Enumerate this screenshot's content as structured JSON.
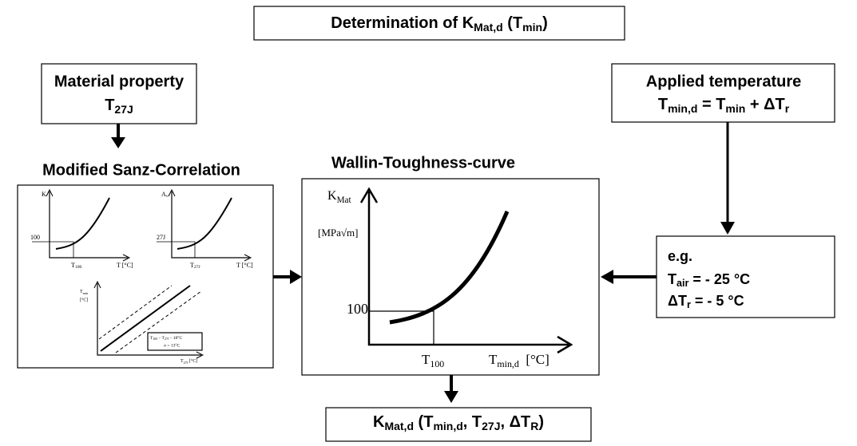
{
  "title": [
    "Determination of K",
    "Mat,d",
    " (T",
    "min",
    ")"
  ],
  "material": {
    "heading": "Material property",
    "symbol": [
      "T",
      "27J"
    ]
  },
  "applied": {
    "heading": "Applied temperature",
    "formula": [
      "T",
      "min,d",
      " = T",
      "min",
      " + ΔT",
      "r"
    ]
  },
  "sanz": {
    "heading": "Modified Sanz-Correlation",
    "plot1": {
      "y": "K",
      "level": "100",
      "tick": [
        "T",
        "100"
      ],
      "x": "T [°C]"
    },
    "plot2": {
      "y": [
        "A",
        "v"
      ],
      "level": "27J",
      "tick": [
        "T",
        "27J"
      ],
      "x": "T [°C]"
    },
    "plot3": {
      "y": [
        "T",
        "min"
      ],
      "yunit": "[°C]",
      "x": [
        "T",
        "27J",
        " [°C]"
      ],
      "legend1": [
        "T",
        "100",
        " – T",
        "27J",
        " – 18°C"
      ],
      "legend2": "σ = 13°C"
    }
  },
  "wallin": {
    "heading": "Wallin-Toughness-curve",
    "y": [
      "K",
      "Mat"
    ],
    "yunit": "[MPa√m]",
    "level": "100",
    "tick": [
      "T",
      "100"
    ],
    "x": [
      "T",
      "min,d",
      "  [°C]"
    ]
  },
  "example": {
    "heading": "e.g.",
    "line1": [
      "T",
      "air",
      " = - 25 °C"
    ],
    "line2": [
      "ΔT",
      "r",
      " = - 5 °C"
    ]
  },
  "result": [
    "K",
    "Mat,d",
    " (T",
    "min,d",
    ", T",
    "27J",
    ", ΔT",
    "R",
    ")"
  ]
}
